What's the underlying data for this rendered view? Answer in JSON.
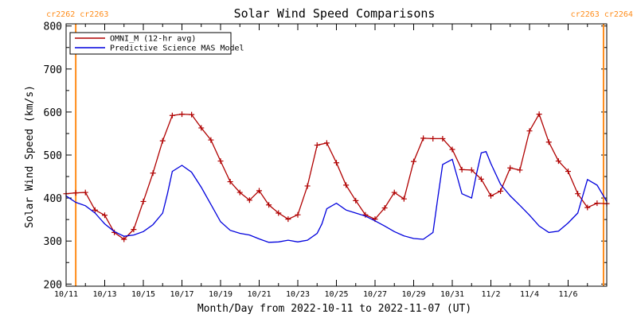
{
  "colors": {
    "omni": "#b00000",
    "model": "#0000dd",
    "carrington": "#ff8c1a",
    "axis": "#000000"
  },
  "chart_data": {
    "type": "line",
    "title": "Solar Wind Speed Comparisons",
    "xlabel": "Month/Day from 2022-10-11 to 2022-11-07 (UT)",
    "ylabel": "Solar Wind Speed (km/s)",
    "xlim": [
      "2022-10-11T00:00",
      "2022-11-08T00:00"
    ],
    "ylim": [
      195,
      805
    ],
    "yticks": [
      200,
      300,
      400,
      500,
      600,
      700,
      800
    ],
    "xticks": [
      {
        "date": "2022-10-11",
        "label": "10/11"
      },
      {
        "date": "2022-10-13",
        "label": "10/13"
      },
      {
        "date": "2022-10-15",
        "label": "10/15"
      },
      {
        "date": "2022-10-17",
        "label": "10/17"
      },
      {
        "date": "2022-10-19",
        "label": "10/19"
      },
      {
        "date": "2022-10-21",
        "label": "10/21"
      },
      {
        "date": "2022-10-23",
        "label": "10/23"
      },
      {
        "date": "2022-10-25",
        "label": "10/25"
      },
      {
        "date": "2022-10-27",
        "label": "10/27"
      },
      {
        "date": "2022-10-29",
        "label": "10/29"
      },
      {
        "date": "2022-10-31",
        "label": "10/31"
      },
      {
        "date": "2022-11-02",
        "label": "11/2"
      },
      {
        "date": "2022-11-04",
        "label": "11/4"
      },
      {
        "date": "2022-11-06",
        "label": "11/6"
      }
    ],
    "legend_position": "top-left",
    "grid": false,
    "carrington_markers": [
      {
        "date": "2022-10-11T12:00",
        "labels": [
          "cr2262",
          "cr2263"
        ],
        "side": "left"
      },
      {
        "date": "2022-11-07T20:00",
        "labels": [
          "cr2263",
          "cr2264"
        ],
        "side": "right"
      }
    ],
    "series": [
      {
        "name": "OMNI_M (12-hr avg)",
        "color": "#b00000",
        "markers": "plus",
        "points": [
          [
            "2022-10-11T00:00",
            410
          ],
          [
            "2022-10-11T12:00",
            412
          ],
          [
            "2022-10-12T00:00",
            413
          ],
          [
            "2022-10-12T12:00",
            372
          ],
          [
            "2022-10-13T00:00",
            360
          ],
          [
            "2022-10-13T12:00",
            320
          ],
          [
            "2022-10-14T00:00",
            304
          ],
          [
            "2022-10-14T12:00",
            327
          ],
          [
            "2022-10-15T00:00",
            392
          ],
          [
            "2022-10-15T12:00",
            458
          ],
          [
            "2022-10-16T00:00",
            533
          ],
          [
            "2022-10-16T12:00",
            592
          ],
          [
            "2022-10-17T00:00",
            595
          ],
          [
            "2022-10-17T12:00",
            594
          ],
          [
            "2022-10-18T00:00",
            563
          ],
          [
            "2022-10-18T12:00",
            535
          ],
          [
            "2022-10-19T00:00",
            486
          ],
          [
            "2022-10-19T12:00",
            438
          ],
          [
            "2022-10-20T00:00",
            413
          ],
          [
            "2022-10-20T12:00",
            395
          ],
          [
            "2022-10-21T00:00",
            417
          ],
          [
            "2022-10-21T12:00",
            384
          ],
          [
            "2022-10-22T00:00",
            365
          ],
          [
            "2022-10-22T12:00",
            351
          ],
          [
            "2022-10-23T00:00",
            361
          ],
          [
            "2022-10-23T12:00",
            428
          ],
          [
            "2022-10-24T00:00",
            523
          ],
          [
            "2022-10-24T12:00",
            528
          ],
          [
            "2022-10-25T00:00",
            482
          ],
          [
            "2022-10-25T12:00",
            430
          ],
          [
            "2022-10-26T00:00",
            394
          ],
          [
            "2022-10-26T12:00",
            361
          ],
          [
            "2022-10-27T00:00",
            351
          ],
          [
            "2022-10-27T12:00",
            377
          ],
          [
            "2022-10-28T00:00",
            413
          ],
          [
            "2022-10-28T12:00",
            398
          ],
          [
            "2022-10-29T00:00",
            485
          ],
          [
            "2022-10-29T12:00",
            539
          ],
          [
            "2022-10-30T00:00",
            538
          ],
          [
            "2022-10-30T12:00",
            538
          ],
          [
            "2022-10-31T00:00",
            513
          ],
          [
            "2022-10-31T12:00",
            466
          ],
          [
            "2022-11-01T00:00",
            465
          ],
          [
            "2022-11-01T12:00",
            444
          ],
          [
            "2022-11-02T00:00",
            405
          ],
          [
            "2022-11-02T12:00",
            416
          ],
          [
            "2022-11-03T00:00",
            470
          ],
          [
            "2022-11-03T12:00",
            465
          ],
          [
            "2022-11-04T00:00",
            556
          ],
          [
            "2022-11-04T12:00",
            595
          ],
          [
            "2022-11-05T00:00",
            530
          ],
          [
            "2022-11-05T12:00",
            486
          ],
          [
            "2022-11-06T00:00",
            462
          ],
          [
            "2022-11-06T12:00",
            410
          ],
          [
            "2022-11-07T00:00",
            378
          ],
          [
            "2022-11-07T12:00",
            388
          ],
          [
            "2022-11-08T00:00",
            387
          ]
        ]
      },
      {
        "name": "Predictive Science MAS Model",
        "color": "#0000dd",
        "markers": "none",
        "points": [
          [
            "2022-10-11T00:00",
            405
          ],
          [
            "2022-10-11T12:00",
            390
          ],
          [
            "2022-10-12T00:00",
            382
          ],
          [
            "2022-10-12T12:00",
            365
          ],
          [
            "2022-10-13T00:00",
            340
          ],
          [
            "2022-10-13T12:00",
            322
          ],
          [
            "2022-10-14T00:00",
            311
          ],
          [
            "2022-10-14T12:00",
            314
          ],
          [
            "2022-10-15T00:00",
            322
          ],
          [
            "2022-10-15T12:00",
            338
          ],
          [
            "2022-10-16T00:00",
            365
          ],
          [
            "2022-10-16T06:00",
            410
          ],
          [
            "2022-10-16T12:00",
            462
          ],
          [
            "2022-10-17T00:00",
            476
          ],
          [
            "2022-10-17T12:00",
            460
          ],
          [
            "2022-10-18T00:00",
            425
          ],
          [
            "2022-10-18T12:00",
            385
          ],
          [
            "2022-10-19T00:00",
            345
          ],
          [
            "2022-10-19T12:00",
            325
          ],
          [
            "2022-10-20T00:00",
            318
          ],
          [
            "2022-10-20T12:00",
            314
          ],
          [
            "2022-10-21T00:00",
            305
          ],
          [
            "2022-10-21T12:00",
            297
          ],
          [
            "2022-10-22T00:00",
            298
          ],
          [
            "2022-10-22T12:00",
            302
          ],
          [
            "2022-10-23T00:00",
            298
          ],
          [
            "2022-10-23T12:00",
            302
          ],
          [
            "2022-10-24T00:00",
            318
          ],
          [
            "2022-10-24T06:00",
            340
          ],
          [
            "2022-10-24T12:00",
            375
          ],
          [
            "2022-10-25T00:00",
            388
          ],
          [
            "2022-10-25T12:00",
            372
          ],
          [
            "2022-10-26T00:00",
            365
          ],
          [
            "2022-10-26T12:00",
            358
          ],
          [
            "2022-10-27T00:00",
            347
          ],
          [
            "2022-10-27T12:00",
            335
          ],
          [
            "2022-10-28T00:00",
            322
          ],
          [
            "2022-10-28T12:00",
            312
          ],
          [
            "2022-10-29T00:00",
            306
          ],
          [
            "2022-10-29T12:00",
            304
          ],
          [
            "2022-10-30T00:00",
            320
          ],
          [
            "2022-10-30T06:00",
            400
          ],
          [
            "2022-10-30T12:00",
            478
          ],
          [
            "2022-10-31T00:00",
            490
          ],
          [
            "2022-10-31T06:00",
            450
          ],
          [
            "2022-10-31T12:00",
            410
          ],
          [
            "2022-11-01T00:00",
            400
          ],
          [
            "2022-11-01T06:00",
            455
          ],
          [
            "2022-11-01T12:00",
            505
          ],
          [
            "2022-11-01T18:00",
            508
          ],
          [
            "2022-11-02T00:00",
            480
          ],
          [
            "2022-11-02T12:00",
            432
          ],
          [
            "2022-11-03T00:00",
            405
          ],
          [
            "2022-11-03T12:00",
            383
          ],
          [
            "2022-11-04T00:00",
            360
          ],
          [
            "2022-11-04T12:00",
            335
          ],
          [
            "2022-11-05T00:00",
            320
          ],
          [
            "2022-11-05T12:00",
            323
          ],
          [
            "2022-11-06T00:00",
            342
          ],
          [
            "2022-11-06T12:00",
            365
          ],
          [
            "2022-11-07T00:00",
            443
          ],
          [
            "2022-11-07T12:00",
            430
          ],
          [
            "2022-11-08T00:00",
            392
          ]
        ]
      }
    ]
  }
}
